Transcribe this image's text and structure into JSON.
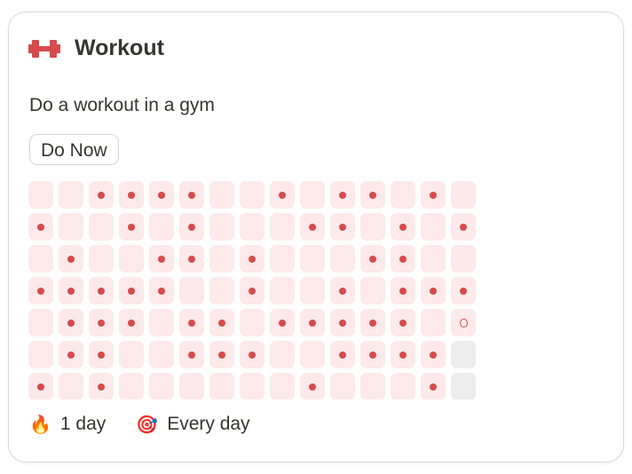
{
  "habit": {
    "icon": "dumbbell-icon",
    "title": "Workout",
    "description": "Do a workout in a gym",
    "action_label": "Do Now",
    "accent_color": "#d64b4b"
  },
  "tracker": {
    "legend": {
      "1": "done",
      "0": "missed",
      "o": "today",
      "g": "future"
    },
    "rows": [
      "001111001011010",
      "100101000110101",
      "010011010001100",
      "111110010010111",
      "01110110111110o",
      "01100111001111g",
      "10100000010001g"
    ]
  },
  "footer": {
    "streak_icon": "fire-icon",
    "streak": "1 day",
    "frequency_icon": "target-icon",
    "frequency": "Every day"
  }
}
